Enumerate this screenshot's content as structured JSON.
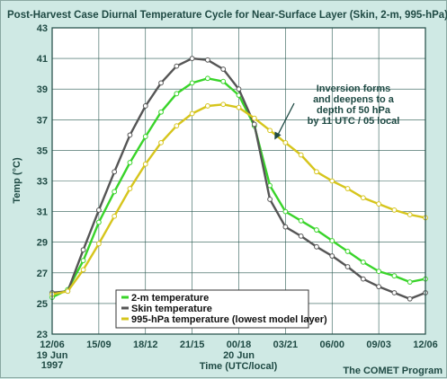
{
  "chart_data": {
    "type": "line",
    "title": "Post-Harvest Case Diurnal Temperature Cycle for Near-Surface Layer (Skin, 2-m, 995-hPa)",
    "xlabel": "Time (UTC/local)",
    "ylabel": "Temp (°C)",
    "ylim": [
      23,
      43
    ],
    "yticks": [
      23,
      25,
      27,
      29,
      31,
      33,
      35,
      37,
      39,
      41,
      43
    ],
    "xlim": [
      0,
      24
    ],
    "xticks": [
      {
        "x": 0,
        "label": "12/06"
      },
      {
        "x": 3,
        "label": "15/09"
      },
      {
        "x": 6,
        "label": "18/12"
      },
      {
        "x": 9,
        "label": "21/15"
      },
      {
        "x": 12,
        "label": "00/18"
      },
      {
        "x": 15,
        "label": "03/21"
      },
      {
        "x": 18,
        "label": "06/00"
      },
      {
        "x": 21,
        "label": "09/03"
      },
      {
        "x": 24,
        "label": "12/06"
      }
    ],
    "date_labels": [
      {
        "x": 0,
        "lines": [
          "19 Jun",
          "1997"
        ]
      },
      {
        "x": 12,
        "lines": [
          "20 Jun"
        ]
      }
    ],
    "grid": true,
    "legend_position": "bottom-left",
    "series": [
      {
        "name": "2-m temperature",
        "color": "#39d42a",
        "marker_fill": "#ffffff",
        "values": [
          [
            0,
            25.4
          ],
          [
            1,
            25.9
          ],
          [
            2,
            27.8
          ],
          [
            3,
            30.3
          ],
          [
            4,
            32.3
          ],
          [
            5,
            34.2
          ],
          [
            6,
            35.9
          ],
          [
            7,
            37.5
          ],
          [
            8,
            38.7
          ],
          [
            9,
            39.4
          ],
          [
            10,
            39.7
          ],
          [
            11,
            39.5
          ],
          [
            12,
            38.6
          ],
          [
            13,
            36.6
          ],
          [
            14,
            32.7
          ],
          [
            15,
            31.0
          ],
          [
            16,
            30.4
          ],
          [
            17,
            29.8
          ],
          [
            18,
            29.1
          ],
          [
            19,
            28.4
          ],
          [
            20,
            27.7
          ],
          [
            21,
            27.1
          ],
          [
            22,
            26.8
          ],
          [
            23,
            26.4
          ],
          [
            24,
            26.6
          ]
        ]
      },
      {
        "name": "Skin temperature",
        "color": "#555555",
        "marker_fill": "#ffffff",
        "values": [
          [
            0,
            25.7
          ],
          [
            1,
            25.8
          ],
          [
            2,
            28.5
          ],
          [
            3,
            31.1
          ],
          [
            4,
            33.6
          ],
          [
            5,
            36.0
          ],
          [
            6,
            37.9
          ],
          [
            7,
            39.4
          ],
          [
            8,
            40.5
          ],
          [
            9,
            41.0
          ],
          [
            10,
            40.9
          ],
          [
            11,
            40.3
          ],
          [
            12,
            39.0
          ],
          [
            13,
            36.7
          ],
          [
            14,
            31.8
          ],
          [
            15,
            30.0
          ],
          [
            16,
            29.4
          ],
          [
            17,
            28.7
          ],
          [
            18,
            28.1
          ],
          [
            19,
            27.4
          ],
          [
            20,
            26.6
          ],
          [
            21,
            26.1
          ],
          [
            22,
            25.7
          ],
          [
            23,
            25.3
          ],
          [
            24,
            25.7
          ]
        ]
      },
      {
        "name": "995-hPa temperature (lowest model layer)",
        "color": "#d6c51c",
        "marker_fill": "#ffffff",
        "values": [
          [
            0,
            25.6
          ],
          [
            1,
            25.8
          ],
          [
            2,
            27.2
          ],
          [
            3,
            28.9
          ],
          [
            4,
            30.7
          ],
          [
            5,
            32.5
          ],
          [
            6,
            34.1
          ],
          [
            7,
            35.5
          ],
          [
            8,
            36.6
          ],
          [
            9,
            37.4
          ],
          [
            10,
            37.9
          ],
          [
            11,
            38.0
          ],
          [
            12,
            37.8
          ],
          [
            13,
            37.1
          ],
          [
            14,
            36.3
          ],
          [
            15,
            35.5
          ],
          [
            16,
            34.7
          ],
          [
            17,
            33.6
          ],
          [
            18,
            33.0
          ],
          [
            19,
            32.5
          ],
          [
            20,
            31.9
          ],
          [
            21,
            31.5
          ],
          [
            22,
            31.1
          ],
          [
            23,
            30.8
          ],
          [
            24,
            30.6
          ]
        ]
      }
    ],
    "annotation": {
      "lines": [
        "Inversion forms",
        "and deepens to a",
        "depth of 50 hPa",
        "by 11 UTC / 05 local"
      ],
      "arrow_to": [
        14.3,
        35.7
      ]
    }
  },
  "credit": "The COMET Program"
}
